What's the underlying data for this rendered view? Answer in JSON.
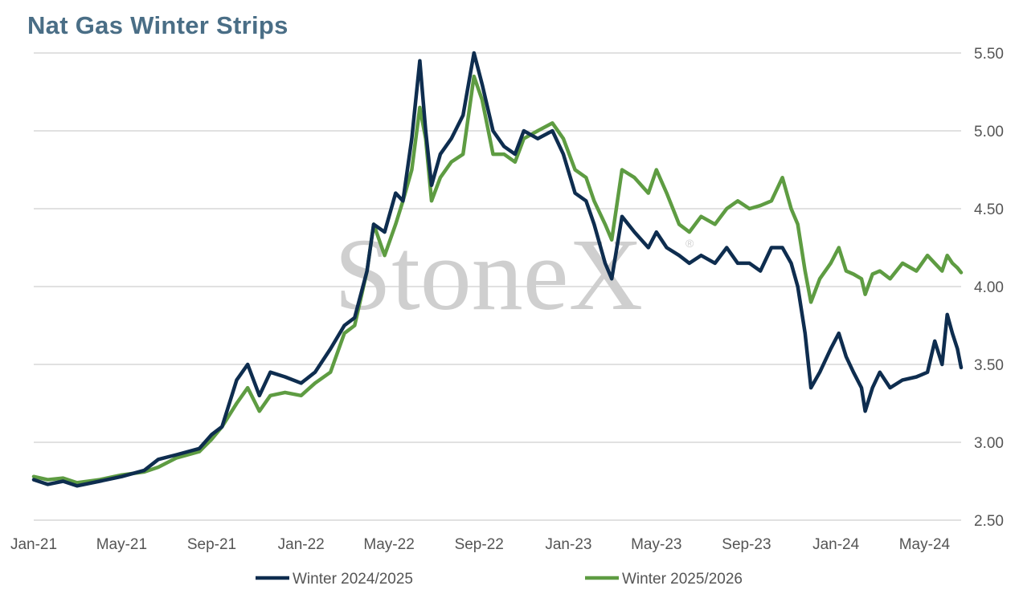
{
  "chart_data": {
    "type": "line",
    "title": "Nat Gas Winter Strips",
    "watermark": "StoneX",
    "watermark_mark": "®",
    "xlabel": "",
    "ylabel": "",
    "x_range": [
      "2021-01-01",
      "2024-06-20"
    ],
    "ylim": [
      2.5,
      5.5
    ],
    "y_ticks": [
      "2.50",
      "3.00",
      "3.50",
      "4.00",
      "4.50",
      "5.00",
      "5.50"
    ],
    "x_ticks": [
      {
        "label": "Jan-21",
        "date": "2021-01-01"
      },
      {
        "label": "May-21",
        "date": "2021-05-01"
      },
      {
        "label": "Sep-21",
        "date": "2021-09-01"
      },
      {
        "label": "Jan-22",
        "date": "2022-01-01"
      },
      {
        "label": "May-22",
        "date": "2022-05-01"
      },
      {
        "label": "Sep-22",
        "date": "2022-09-01"
      },
      {
        "label": "Jan-23",
        "date": "2023-01-01"
      },
      {
        "label": "May-23",
        "date": "2023-05-01"
      },
      {
        "label": "Sep-23",
        "date": "2023-09-01"
      },
      {
        "label": "Jan-24",
        "date": "2024-01-01"
      },
      {
        "label": "May-24",
        "date": "2024-05-01"
      }
    ],
    "grid": true,
    "y_axis_position": "right",
    "legend_position": "bottom",
    "series": [
      {
        "name": "Winter 2024/2025",
        "color": "#0e2d4f",
        "points": [
          [
            "2021-01-01",
            2.76
          ],
          [
            "2021-01-20",
            2.73
          ],
          [
            "2021-02-10",
            2.75
          ],
          [
            "2021-03-01",
            2.72
          ],
          [
            "2021-04-01",
            2.75
          ],
          [
            "2021-05-01",
            2.78
          ],
          [
            "2021-06-01",
            2.82
          ],
          [
            "2021-06-20",
            2.89
          ],
          [
            "2021-07-15",
            2.92
          ],
          [
            "2021-08-15",
            2.96
          ],
          [
            "2021-09-01",
            3.05
          ],
          [
            "2021-09-15",
            3.1
          ],
          [
            "2021-10-05",
            3.4
          ],
          [
            "2021-10-20",
            3.5
          ],
          [
            "2021-11-05",
            3.3
          ],
          [
            "2021-11-20",
            3.45
          ],
          [
            "2021-12-10",
            3.42
          ],
          [
            "2022-01-01",
            3.38
          ],
          [
            "2022-01-20",
            3.45
          ],
          [
            "2022-02-10",
            3.6
          ],
          [
            "2022-03-01",
            3.75
          ],
          [
            "2022-03-15",
            3.8
          ],
          [
            "2022-04-01",
            4.1
          ],
          [
            "2022-04-10",
            4.4
          ],
          [
            "2022-04-25",
            4.35
          ],
          [
            "2022-05-10",
            4.6
          ],
          [
            "2022-05-20",
            4.55
          ],
          [
            "2022-06-01",
            4.95
          ],
          [
            "2022-06-12",
            5.45
          ],
          [
            "2022-06-20",
            5.0
          ],
          [
            "2022-06-28",
            4.65
          ],
          [
            "2022-07-10",
            4.85
          ],
          [
            "2022-07-25",
            4.95
          ],
          [
            "2022-08-10",
            5.1
          ],
          [
            "2022-08-25",
            5.5
          ],
          [
            "2022-09-05",
            5.3
          ],
          [
            "2022-09-20",
            5.0
          ],
          [
            "2022-10-05",
            4.9
          ],
          [
            "2022-10-20",
            4.85
          ],
          [
            "2022-11-01",
            5.0
          ],
          [
            "2022-11-20",
            4.95
          ],
          [
            "2022-12-10",
            5.0
          ],
          [
            "2022-12-25",
            4.85
          ],
          [
            "2023-01-10",
            4.6
          ],
          [
            "2023-01-25",
            4.55
          ],
          [
            "2023-02-05",
            4.4
          ],
          [
            "2023-02-20",
            4.15
          ],
          [
            "2023-03-01",
            4.05
          ],
          [
            "2023-03-15",
            4.45
          ],
          [
            "2023-04-01",
            4.35
          ],
          [
            "2023-04-20",
            4.25
          ],
          [
            "2023-05-01",
            4.35
          ],
          [
            "2023-05-15",
            4.25
          ],
          [
            "2023-06-01",
            4.2
          ],
          [
            "2023-06-15",
            4.15
          ],
          [
            "2023-07-01",
            4.2
          ],
          [
            "2023-07-20",
            4.15
          ],
          [
            "2023-08-05",
            4.25
          ],
          [
            "2023-08-20",
            4.15
          ],
          [
            "2023-09-05",
            4.15
          ],
          [
            "2023-09-20",
            4.1
          ],
          [
            "2023-10-05",
            4.25
          ],
          [
            "2023-10-20",
            4.25
          ],
          [
            "2023-11-01",
            4.15
          ],
          [
            "2023-11-10",
            4.0
          ],
          [
            "2023-11-20",
            3.7
          ],
          [
            "2023-11-28",
            3.35
          ],
          [
            "2023-12-10",
            3.45
          ],
          [
            "2023-12-25",
            3.6
          ],
          [
            "2024-01-05",
            3.7
          ],
          [
            "2024-01-15",
            3.55
          ],
          [
            "2024-01-25",
            3.45
          ],
          [
            "2024-02-05",
            3.35
          ],
          [
            "2024-02-10",
            3.2
          ],
          [
            "2024-02-20",
            3.35
          ],
          [
            "2024-03-01",
            3.45
          ],
          [
            "2024-03-15",
            3.35
          ],
          [
            "2024-04-01",
            3.4
          ],
          [
            "2024-04-20",
            3.42
          ],
          [
            "2024-05-05",
            3.45
          ],
          [
            "2024-05-15",
            3.65
          ],
          [
            "2024-05-25",
            3.5
          ],
          [
            "2024-06-01",
            3.82
          ],
          [
            "2024-06-08",
            3.7
          ],
          [
            "2024-06-15",
            3.6
          ],
          [
            "2024-06-20",
            3.48
          ]
        ]
      },
      {
        "name": "Winter 2025/2026",
        "color": "#5e9c42",
        "points": [
          [
            "2021-01-01",
            2.78
          ],
          [
            "2021-01-20",
            2.76
          ],
          [
            "2021-02-10",
            2.77
          ],
          [
            "2021-03-01",
            2.74
          ],
          [
            "2021-04-01",
            2.76
          ],
          [
            "2021-05-01",
            2.79
          ],
          [
            "2021-06-01",
            2.81
          ],
          [
            "2021-06-20",
            2.84
          ],
          [
            "2021-07-15",
            2.9
          ],
          [
            "2021-08-15",
            2.94
          ],
          [
            "2021-09-01",
            3.02
          ],
          [
            "2021-09-15",
            3.1
          ],
          [
            "2021-10-05",
            3.25
          ],
          [
            "2021-10-20",
            3.35
          ],
          [
            "2021-11-05",
            3.2
          ],
          [
            "2021-11-20",
            3.3
          ],
          [
            "2021-12-10",
            3.32
          ],
          [
            "2022-01-01",
            3.3
          ],
          [
            "2022-01-20",
            3.38
          ],
          [
            "2022-02-10",
            3.45
          ],
          [
            "2022-03-01",
            3.7
          ],
          [
            "2022-03-15",
            3.75
          ],
          [
            "2022-04-01",
            4.1
          ],
          [
            "2022-04-10",
            4.4
          ],
          [
            "2022-04-25",
            4.2
          ],
          [
            "2022-05-10",
            4.4
          ],
          [
            "2022-05-20",
            4.55
          ],
          [
            "2022-06-01",
            4.75
          ],
          [
            "2022-06-12",
            5.15
          ],
          [
            "2022-06-20",
            4.95
          ],
          [
            "2022-06-28",
            4.55
          ],
          [
            "2022-07-10",
            4.7
          ],
          [
            "2022-07-25",
            4.8
          ],
          [
            "2022-08-10",
            4.85
          ],
          [
            "2022-08-25",
            5.35
          ],
          [
            "2022-09-05",
            5.2
          ],
          [
            "2022-09-20",
            4.85
          ],
          [
            "2022-10-05",
            4.85
          ],
          [
            "2022-10-20",
            4.8
          ],
          [
            "2022-11-01",
            4.95
          ],
          [
            "2022-11-20",
            5.0
          ],
          [
            "2022-12-10",
            5.05
          ],
          [
            "2022-12-25",
            4.95
          ],
          [
            "2023-01-10",
            4.75
          ],
          [
            "2023-01-25",
            4.7
          ],
          [
            "2023-02-05",
            4.55
          ],
          [
            "2023-02-20",
            4.4
          ],
          [
            "2023-03-01",
            4.3
          ],
          [
            "2023-03-15",
            4.75
          ],
          [
            "2023-04-01",
            4.7
          ],
          [
            "2023-04-20",
            4.6
          ],
          [
            "2023-05-01",
            4.75
          ],
          [
            "2023-05-15",
            4.6
          ],
          [
            "2023-06-01",
            4.4
          ],
          [
            "2023-06-15",
            4.35
          ],
          [
            "2023-07-01",
            4.45
          ],
          [
            "2023-07-20",
            4.4
          ],
          [
            "2023-08-05",
            4.5
          ],
          [
            "2023-08-20",
            4.55
          ],
          [
            "2023-09-05",
            4.5
          ],
          [
            "2023-09-20",
            4.52
          ],
          [
            "2023-10-05",
            4.55
          ],
          [
            "2023-10-20",
            4.7
          ],
          [
            "2023-11-01",
            4.5
          ],
          [
            "2023-11-10",
            4.4
          ],
          [
            "2023-11-20",
            4.1
          ],
          [
            "2023-11-28",
            3.9
          ],
          [
            "2023-12-10",
            4.05
          ],
          [
            "2023-12-25",
            4.15
          ],
          [
            "2024-01-05",
            4.25
          ],
          [
            "2024-01-15",
            4.1
          ],
          [
            "2024-01-25",
            4.08
          ],
          [
            "2024-02-05",
            4.05
          ],
          [
            "2024-02-10",
            3.95
          ],
          [
            "2024-02-20",
            4.08
          ],
          [
            "2024-03-01",
            4.1
          ],
          [
            "2024-03-15",
            4.05
          ],
          [
            "2024-04-01",
            4.15
          ],
          [
            "2024-04-20",
            4.1
          ],
          [
            "2024-05-05",
            4.2
          ],
          [
            "2024-05-15",
            4.15
          ],
          [
            "2024-05-25",
            4.1
          ],
          [
            "2024-06-01",
            4.2
          ],
          [
            "2024-06-08",
            4.15
          ],
          [
            "2024-06-15",
            4.12
          ],
          [
            "2024-06-20",
            4.09
          ]
        ]
      }
    ]
  }
}
